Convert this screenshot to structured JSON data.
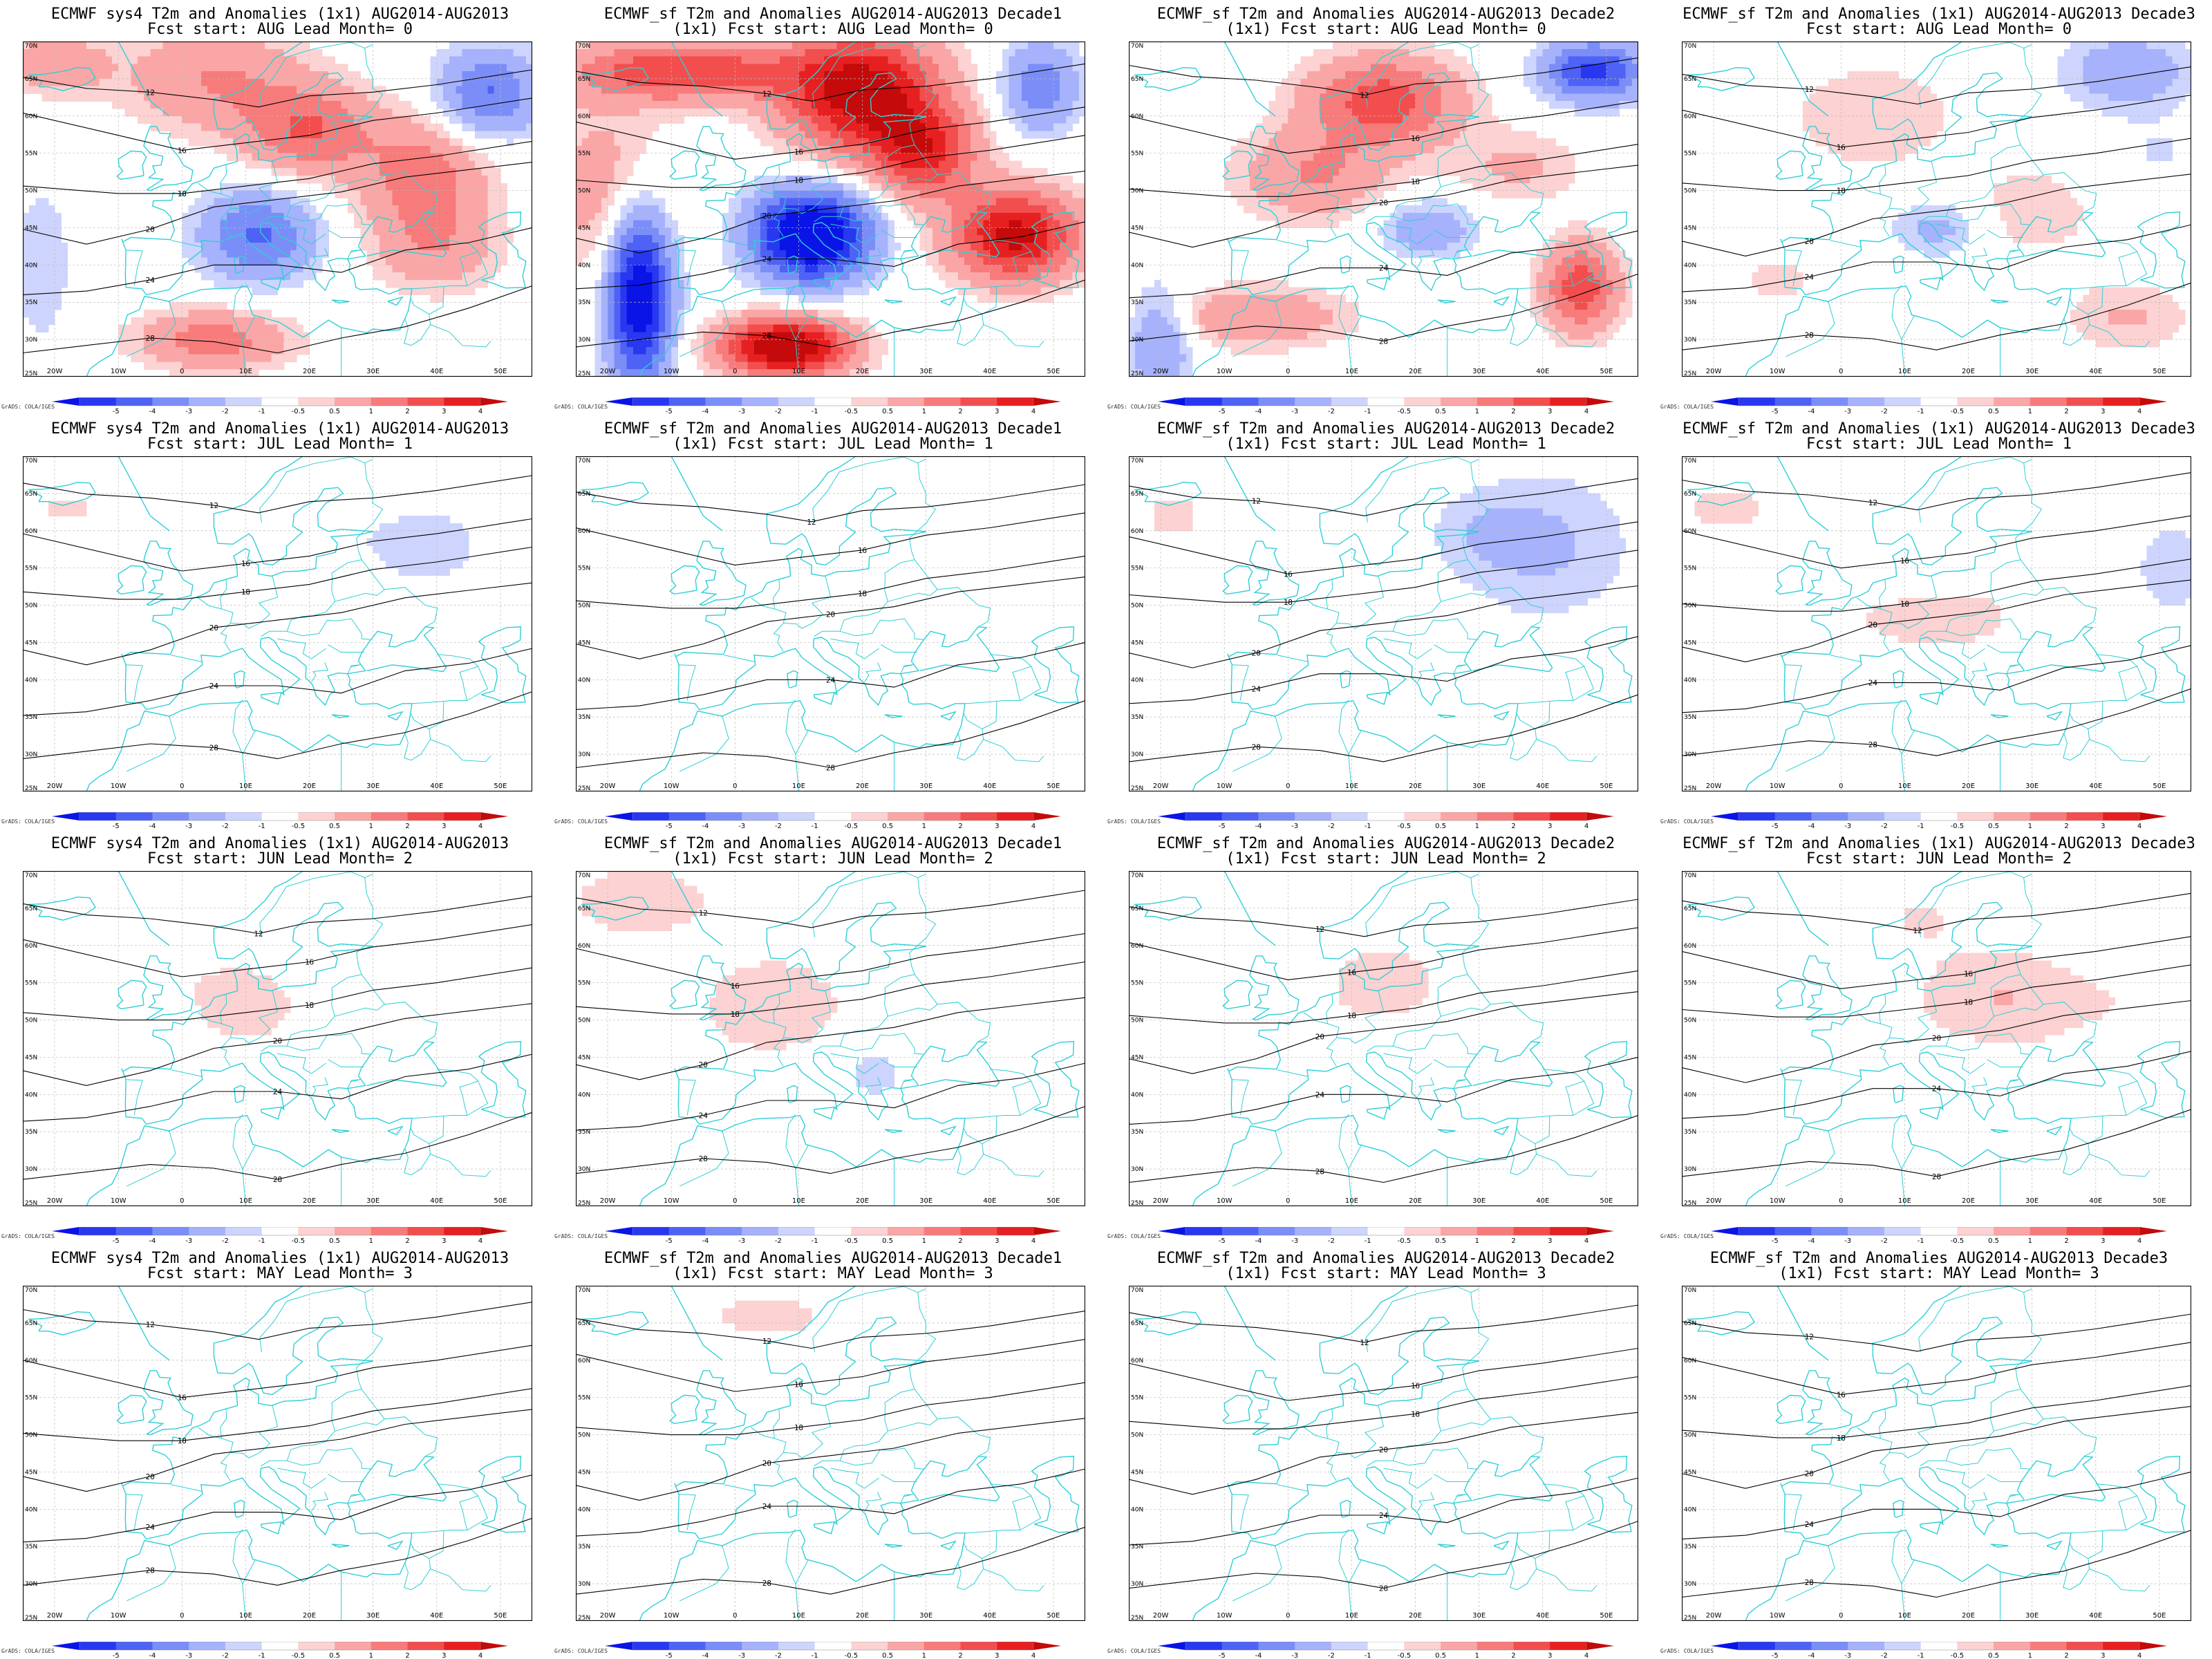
{
  "colorbar": {
    "ticks": [
      "-5",
      "-4",
      "-3",
      "-2",
      "-1",
      "-0.5",
      "0.5",
      "1",
      "2",
      "3",
      "4",
      "5"
    ],
    "colors": [
      "#0a14e6",
      "#2838f0",
      "#4e62f5",
      "#7b8ef8",
      "#a6b2fb",
      "#cdd4fd",
      "#ffffff",
      "#fdd2d2",
      "#fba6a6",
      "#f87b7b",
      "#f24e4e",
      "#e62020",
      "#c40a0a"
    ],
    "credit": "GrADS: COLA/IGES"
  },
  "map": {
    "lon_ticks": [
      "20W",
      "10W",
      "0",
      "10E",
      "20E",
      "30E",
      "40E",
      "50E"
    ],
    "lat_ticks": [
      "70N",
      "65N",
      "60N",
      "55N",
      "50N",
      "45N",
      "40N",
      "35N",
      "30N",
      "25N"
    ],
    "contour_labels": [
      "12",
      "16",
      "18",
      "20",
      "24",
      "28"
    ],
    "coast_color": "#2ecfd6",
    "contour_color": "#000000"
  },
  "panels": [
    {
      "line1": "ECMWF sys4 T2m and Anomalies (1x1) AUG2014-AUG2013",
      "line2": "Fcst start: AUG  Lead Month= 0",
      "intensity": 0.7
    },
    {
      "line1": "ECMWF_sf T2m and Anomalies AUG2014-AUG2013 Decade1",
      "line2": "(1x1) Fcst start: AUG  Lead Month= 0",
      "intensity": 1.0
    },
    {
      "line1": "ECMWF_sf T2m and Anomalies AUG2014-AUG2013 Decade2",
      "line2": "(1x1) Fcst start: AUG  Lead Month= 0",
      "intensity": 0.8
    },
    {
      "line1": "ECMWF_sf T2m and Anomalies (1x1) AUG2014-AUG2013 Decade3",
      "line2": "Fcst start: AUG  Lead Month= 0",
      "intensity": 0.5
    },
    {
      "line1": "ECMWF sys4 T2m and Anomalies (1x1) AUG2014-AUG2013",
      "line2": "Fcst start: JUL  Lead Month= 1",
      "intensity": 0.3
    },
    {
      "line1": "ECMWF_sf T2m and Anomalies AUG2014-AUG2013 Decade1",
      "line2": "(1x1) Fcst start: JUL  Lead Month= 1",
      "intensity": 0.25
    },
    {
      "line1": "ECMWF_sf T2m and Anomalies AUG2014-AUG2013 Decade2",
      "line2": "(1x1) Fcst start: JUL  Lead Month= 1",
      "intensity": 0.35
    },
    {
      "line1": "ECMWF_sf T2m and Anomalies (1x1) AUG2014-AUG2013 Decade3",
      "line2": "Fcst start: JUL  Lead Month= 1",
      "intensity": 0.35
    },
    {
      "line1": "ECMWF sys4 T2m and Anomalies (1x1) AUG2014-AUG2013",
      "line2": "Fcst start: JUN  Lead Month= 2",
      "intensity": 0.3
    },
    {
      "line1": "ECMWF_sf T2m and Anomalies AUG2014-AUG2013 Decade1",
      "line2": "(1x1) Fcst start: JUN  Lead Month= 2",
      "intensity": 0.35
    },
    {
      "line1": "ECMWF_sf T2m and Anomalies AUG2014-AUG2013 Decade2",
      "line2": "(1x1) Fcst start: JUN  Lead Month= 2",
      "intensity": 0.3
    },
    {
      "line1": "ECMWF_sf T2m and Anomalies (1x1) AUG2014-AUG2013 Decade3",
      "line2": "Fcst start: JUN  Lead Month= 2",
      "intensity": 0.35
    },
    {
      "line1": "ECMWF sys4 T2m and Anomalies (1x1) AUG2014-AUG2013",
      "line2": "Fcst start: MAY  Lead Month= 3",
      "intensity": 0.15
    },
    {
      "line1": "ECMWF_sf T2m and Anomalies AUG2014-AUG2013 Decade1",
      "line2": "(1x1) Fcst start: MAY  Lead Month= 3",
      "intensity": 0.25
    },
    {
      "line1": "ECMWF_sf T2m and Anomalies AUG2014-AUG2013 Decade2",
      "line2": "(1x1) Fcst start: MAY  Lead Month= 3",
      "intensity": 0.15
    },
    {
      "line1": "ECMWF_sf T2m and Anomalies AUG2014-AUG2013 Decade3",
      "line2": "(1x1) Fcst start: MAY  Lead Month= 3",
      "intensity": 0.2
    }
  ]
}
